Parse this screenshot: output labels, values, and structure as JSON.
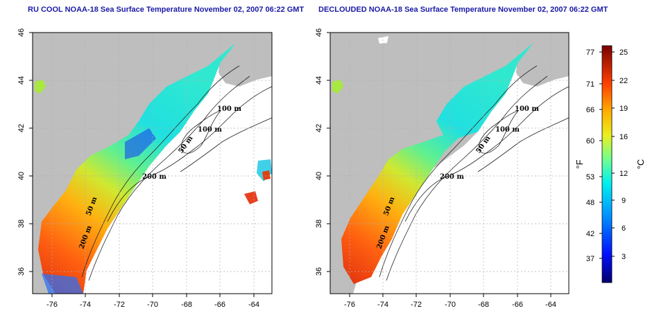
{
  "panels": [
    {
      "title": "RU COOL NOAA-18 Sea Surface Temperature November 02, 2007 06:22 GMT",
      "contour_labels": [
        "100 m",
        "100 m",
        "50 m",
        "200 m",
        "50 m",
        "200 m"
      ]
    },
    {
      "title": "DECLOUDED NOAA-18 Sea Surface Temperature November 02, 2007 06:22 GMT",
      "contour_labels": [
        "100 m",
        "100 m",
        "50 m",
        "200 m",
        "50 m",
        "200 m"
      ]
    }
  ],
  "axes": {
    "lon_ticks": [
      "-76",
      "-74",
      "-72",
      "-70",
      "-68",
      "-66",
      "-64"
    ],
    "lat_ticks": [
      "46",
      "44",
      "42",
      "40",
      "38",
      "36"
    ],
    "lon_range": [
      -77.2,
      -63.0
    ],
    "lat_range": [
      35.0,
      46.0
    ]
  },
  "colorbar": {
    "fahrenheit_ticks": [
      "77",
      "71",
      "66",
      "60",
      "53",
      "48",
      "42",
      "37"
    ],
    "celsius_ticks": [
      "25",
      "22",
      "19",
      "16",
      "12",
      "9",
      "6",
      "3"
    ],
    "fahrenheit_unit": "°F",
    "celsius_unit": "°C",
    "range_celsius": [
      0,
      26
    ]
  },
  "colors": {
    "land": "#bebebe",
    "ocean_nodata": "#ffffff",
    "grid": "#b0b0b0",
    "title": "#1a1aa6",
    "scale": [
      "#000080",
      "#0000ff",
      "#0080ff",
      "#00ffff",
      "#80ff80",
      "#ffff00",
      "#ff8000",
      "#ff0000",
      "#800000"
    ]
  }
}
